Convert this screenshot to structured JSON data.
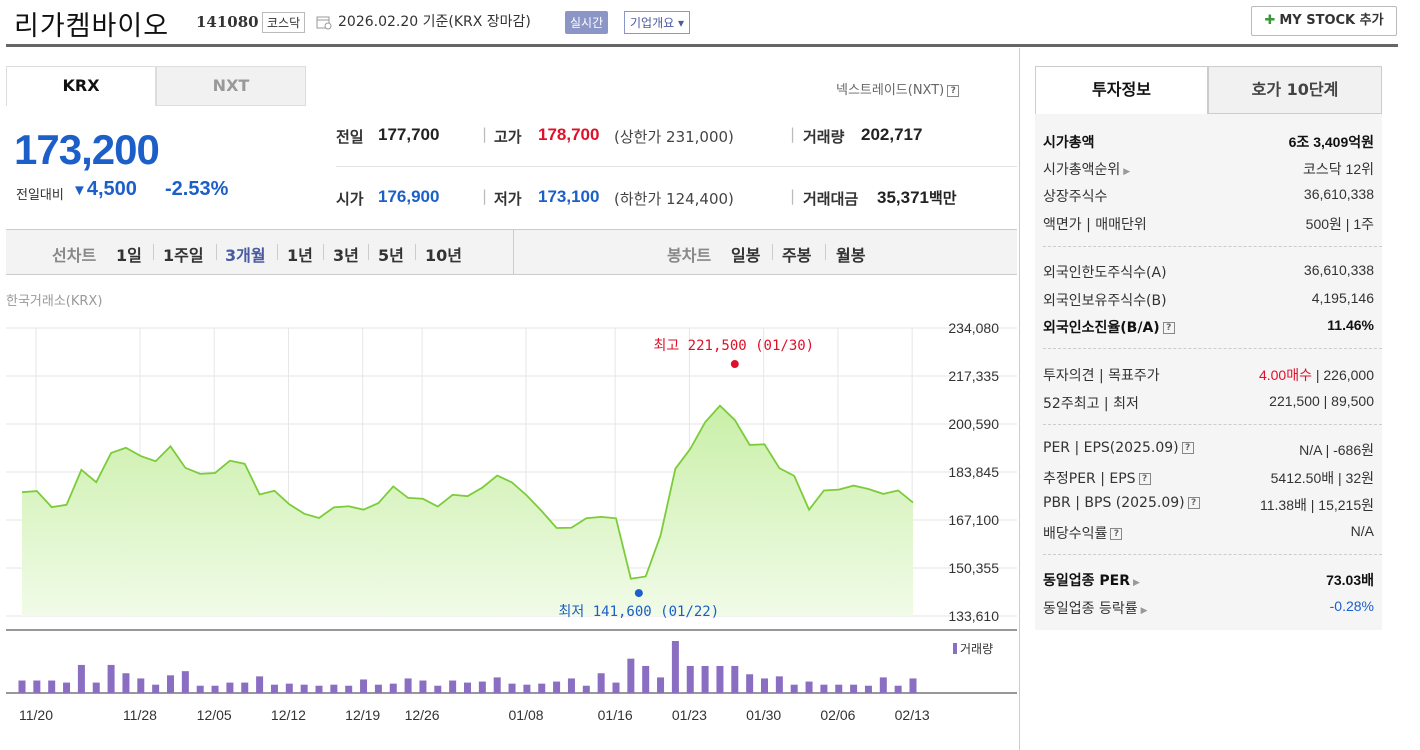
{
  "header": {
    "name": "리가켐바이오",
    "code": "141080",
    "market": "코스닥",
    "date_text": "2026.02.20 기준(KRX 장마감)",
    "realtime_label": "실시간",
    "overview_label": "기업개요 ▾",
    "mystock_label": "MY STOCK 추가"
  },
  "market_tabs": [
    "KRX",
    "NXT"
  ],
  "nxt_link": "넥스트레이드(NXT)",
  "price": {
    "current": "173,200",
    "change_label": "전일대비",
    "change_arrow": "▼",
    "change_amount": "4,500",
    "change_pct": "-2.53%"
  },
  "stats": {
    "prev_label": "전일",
    "prev": "177,700",
    "high_label": "고가",
    "high": "178,700",
    "upper_limit": "(상한가 231,000)",
    "volume_label": "거래량",
    "volume": "202,717",
    "open_label": "시가",
    "open": "176,900",
    "low_label": "저가",
    "low": "173,100",
    "lower_limit": "(하한가 124,400)",
    "turnover_label": "거래대금",
    "turnover": "35,371",
    "turnover_unit": "백만"
  },
  "period": {
    "line_label": "선차트",
    "line_items": [
      "1일",
      "1주일",
      "3개월",
      "1년",
      "3년",
      "5년",
      "10년"
    ],
    "active": "3개월",
    "candle_label": "봉차트",
    "candle_items": [
      "일봉",
      "주봉",
      "월봉"
    ]
  },
  "chart_source": "한국거래소(KRX)",
  "chart_data": {
    "type": "area",
    "y_ticks": [
      "234,080",
      "217,335",
      "200,590",
      "183,845",
      "167,100",
      "150,355",
      "133,610"
    ],
    "ylim": [
      133610,
      234080
    ],
    "x_ticks": [
      "11/20",
      "11/28",
      "12/05",
      "12/12",
      "12/19",
      "12/26",
      "01/08",
      "01/16",
      "01/23",
      "01/30",
      "02/06",
      "02/13"
    ],
    "max_label": "최고 221,500 (01/30)",
    "min_label": "최저 141,600 (01/22)",
    "max_value": 221500,
    "min_value": 141600,
    "volume_legend": "거래량",
    "price_values": [
      176800,
      177200,
      171600,
      172400,
      184600,
      180300,
      190500,
      192300,
      189400,
      187600,
      192800,
      185300,
      183200,
      183500,
      187800,
      186700,
      176000,
      177300,
      172600,
      169300,
      167800,
      171500,
      171900,
      170700,
      173000,
      178800,
      174800,
      174500,
      171800,
      175900,
      175400,
      178400,
      182600,
      180200,
      175600,
      170200,
      164300,
      164400,
      167700,
      168200,
      167700,
      146600,
      147400,
      161700,
      185000,
      191900,
      201200,
      207000,
      202000,
      193300,
      193500,
      185200,
      182500,
      170700,
      177400,
      177700,
      179100,
      177900,
      176200,
      177400,
      173200
    ],
    "volume_values": [
      12,
      12,
      12,
      10,
      27,
      10,
      27,
      19,
      14,
      8,
      17,
      21,
      7,
      7,
      10,
      10,
      16,
      8,
      9,
      8,
      7,
      8,
      7,
      13,
      8,
      9,
      14,
      12,
      7,
      12,
      10,
      11,
      15,
      9,
      8,
      9,
      11,
      14,
      7,
      19,
      10,
      33,
      26,
      15,
      50,
      26,
      26,
      26,
      26,
      18,
      14,
      16,
      8,
      11,
      8,
      8,
      8,
      7,
      15,
      7,
      14
    ]
  },
  "right_tabs": [
    "투자정보",
    "호가 10단계"
  ],
  "invest": {
    "mcap_label": "시가총액",
    "mcap": "6조 3,409억원",
    "rank_label": "시가총액순위",
    "rank": "코스닥 12위",
    "shares_label": "상장주식수",
    "shares": "36,610,338",
    "face_label": "액면가 | 매매단위",
    "face": "500원 | 1주",
    "foreign_limit_label": "외국인한도주식수(A)",
    "foreign_limit": "36,610,338",
    "foreign_hold_label": "외국인보유주식수(B)",
    "foreign_hold": "4,195,146",
    "foreign_ratio_label": "외국인소진율(B/A)",
    "foreign_ratio": "11.46%",
    "opinion_label": "투자의견 | 목표주가",
    "opinion": "4.00매수",
    "target": "| 226,000",
    "w52_label": "52주최고 | 최저",
    "w52": "221,500 | 89,500",
    "per_label": "PER | EPS(2025.09)",
    "per": "N/A | -686원",
    "est_label": "추정PER | EPS",
    "est": "5412.50배 | 32원",
    "pbr_label": "PBR | BPS (2025.09)",
    "pbr": "11.38배 | 15,215원",
    "div_label": "배당수익률",
    "div": "N/A",
    "ind_per_label": "동일업종 PER",
    "ind_per": "73.03배",
    "ind_chg_label": "동일업종 등락률",
    "ind_chg": "-0.28%"
  }
}
